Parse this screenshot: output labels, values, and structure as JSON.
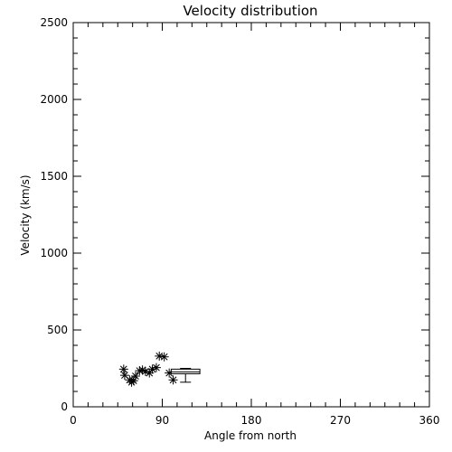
{
  "chart_data": {
    "type": "scatter",
    "title": "Velocity distribution",
    "xlabel": "Angle from north",
    "ylabel": "Velocity (km/s)",
    "xlim": [
      0,
      360
    ],
    "ylim": [
      0,
      2500
    ],
    "xticks": [
      0,
      90,
      180,
      270,
      360
    ],
    "yticks": [
      0,
      500,
      1000,
      1500,
      2000,
      2500
    ],
    "grid": false,
    "series": [
      {
        "marker": "asterisk",
        "points": [
          {
            "x": 51,
            "y": 245
          },
          {
            "x": 52,
            "y": 205
          },
          {
            "x": 57,
            "y": 175
          },
          {
            "x": 59,
            "y": 160
          },
          {
            "x": 61,
            "y": 170
          },
          {
            "x": 63,
            "y": 200
          },
          {
            "x": 67,
            "y": 235
          },
          {
            "x": 70,
            "y": 240
          },
          {
            "x": 73,
            "y": 230
          },
          {
            "x": 77,
            "y": 220
          },
          {
            "x": 80,
            "y": 245
          },
          {
            "x": 84,
            "y": 255
          },
          {
            "x": 87,
            "y": 330
          },
          {
            "x": 92,
            "y": 325
          },
          {
            "x": 97,
            "y": 220
          },
          {
            "x": 101,
            "y": 175
          }
        ]
      }
    ],
    "boxplot": {
      "x_min": 99,
      "x_max": 128,
      "median": 227,
      "q1": 215,
      "q3": 245,
      "whisker_low": 160,
      "whisker_high": 250
    }
  }
}
